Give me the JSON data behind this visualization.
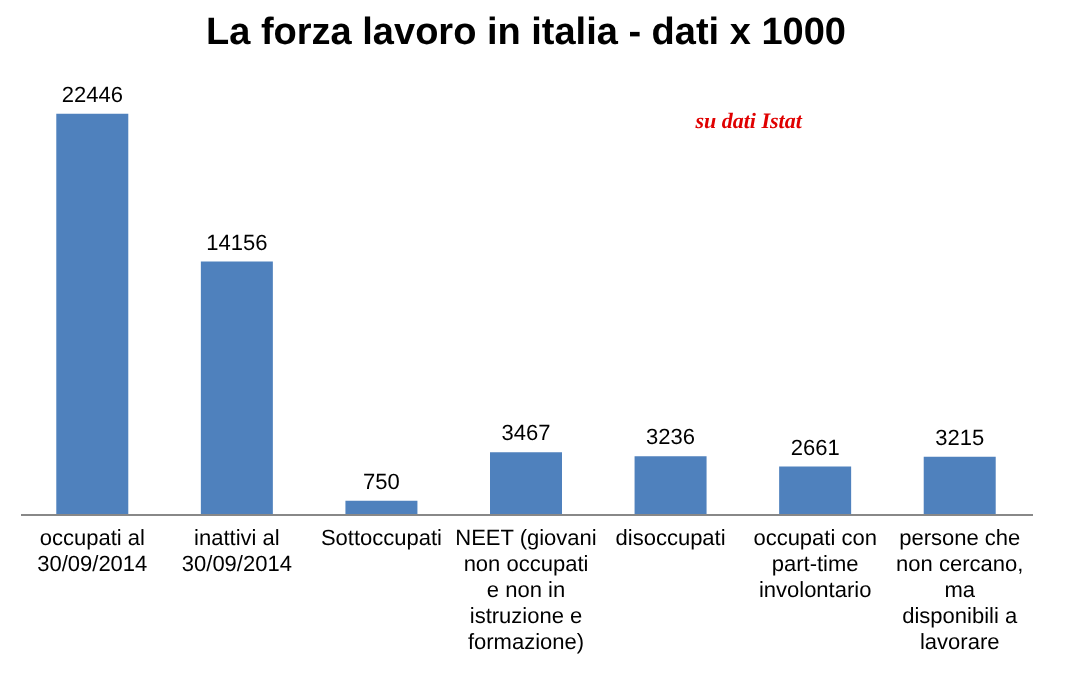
{
  "chart_data": {
    "type": "bar",
    "title": "La forza lavoro in italia - dati x 1000",
    "annotations": [
      "su dati Istat"
    ],
    "categories": [
      "occupati al 30/09/2014",
      "inattivi al 30/09/2014",
      "Sottoccupati",
      "NEET (giovani non occupati e non in istruzione e formazione)",
      "disoccupati",
      "occupati con part-time involontario",
      "persone che non cercano, ma disponibili a lavorare"
    ],
    "values": [
      22446,
      14156,
      750,
      3467,
      3236,
      2661,
      3215
    ],
    "color": "#4f81bd",
    "data_labels": true
  }
}
